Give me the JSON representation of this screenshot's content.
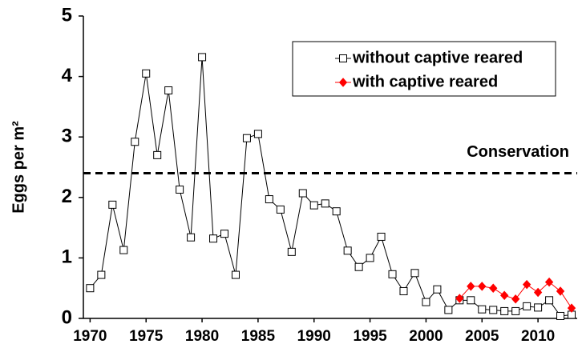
{
  "chart_data": {
    "type": "line",
    "ylabel": "Eggs per m²",
    "xlim": [
      1969.4,
      2013.5
    ],
    "ylim": [
      0,
      5
    ],
    "xticks": [
      1970,
      1975,
      1980,
      1985,
      1990,
      1995,
      2000,
      2005,
      2010
    ],
    "yticks": [
      0,
      1,
      2,
      3,
      4,
      5
    ],
    "legend": "top-right",
    "reference_line": {
      "value": 2.4,
      "label": "Conservation"
    },
    "series": [
      {
        "name": "without captive reared",
        "color": "#000000",
        "marker": "square",
        "x": [
          1970,
          1971,
          1972,
          1973,
          1974,
          1975,
          1976,
          1977,
          1978,
          1979,
          1980,
          1981,
          1982,
          1983,
          1984,
          1985,
          1986,
          1987,
          1988,
          1989,
          1990,
          1991,
          1992,
          1993,
          1994,
          1995,
          1996,
          1997,
          1998,
          1999,
          2000,
          2001,
          2002,
          2003,
          2004,
          2005,
          2006,
          2007,
          2008,
          2009,
          2010,
          2011,
          2012,
          2013
        ],
        "values": [
          0.5,
          0.72,
          1.88,
          1.13,
          2.92,
          4.05,
          2.7,
          3.77,
          2.13,
          1.34,
          4.32,
          1.32,
          1.4,
          0.72,
          2.98,
          3.05,
          1.97,
          1.8,
          1.1,
          2.07,
          1.87,
          1.9,
          1.77,
          1.12,
          0.85,
          1.0,
          1.35,
          0.73,
          0.45,
          0.75,
          0.27,
          0.48,
          0.14,
          0.3,
          0.3,
          0.15,
          0.14,
          0.12,
          0.12,
          0.2,
          0.18,
          0.3,
          0.04,
          0.06
        ]
      },
      {
        "name": "with captive reared",
        "color": "#ff0000",
        "marker": "diamond",
        "x": [
          2003,
          2004,
          2005,
          2006,
          2007,
          2008,
          2009,
          2010,
          2011,
          2012,
          2013
        ],
        "values": [
          0.33,
          0.53,
          0.53,
          0.5,
          0.38,
          0.32,
          0.56,
          0.43,
          0.6,
          0.45,
          0.17
        ]
      }
    ]
  }
}
